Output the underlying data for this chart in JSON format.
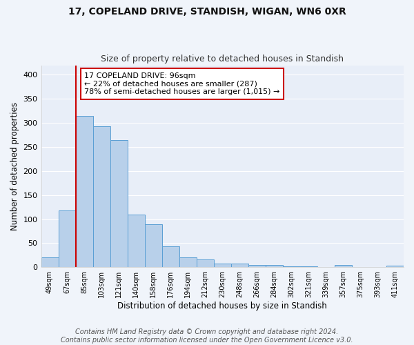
{
  "title1": "17, COPELAND DRIVE, STANDISH, WIGAN, WN6 0XR",
  "title2": "Size of property relative to detached houses in Standish",
  "xlabel": "Distribution of detached houses by size in Standish",
  "ylabel": "Number of detached properties",
  "footer": "Contains HM Land Registry data © Crown copyright and database right 2024.\nContains public sector information licensed under the Open Government Licence v3.0.",
  "bin_labels": [
    "49sqm",
    "67sqm",
    "85sqm",
    "103sqm",
    "121sqm",
    "140sqm",
    "158sqm",
    "176sqm",
    "194sqm",
    "212sqm",
    "230sqm",
    "248sqm",
    "266sqm",
    "284sqm",
    "302sqm",
    "321sqm",
    "339sqm",
    "357sqm",
    "375sqm",
    "393sqm",
    "411sqm"
  ],
  "bar_values": [
    20,
    118,
    315,
    293,
    265,
    110,
    89,
    44,
    21,
    16,
    8,
    7,
    5,
    4,
    2,
    2,
    1,
    5,
    1,
    1,
    3
  ],
  "bar_color": "#b8d0ea",
  "bar_edge_color": "#5a9fd4",
  "background_color": "#e8eef8",
  "grid_color": "#ffffff",
  "annotation_text": "17 COPELAND DRIVE: 96sqm\n← 22% of detached houses are smaller (287)\n78% of semi-detached houses are larger (1,015) →",
  "annotation_box_color": "#ffffff",
  "annotation_box_edge": "#cc0000",
  "vline_x_index": 1.5,
  "vline_color": "#cc0000",
  "ylim": [
    0,
    420
  ],
  "yticks": [
    0,
    50,
    100,
    150,
    200,
    250,
    300,
    350,
    400
  ],
  "title1_fontsize": 10,
  "title2_fontsize": 9,
  "xlabel_fontsize": 8.5,
  "ylabel_fontsize": 8.5,
  "footer_fontsize": 7,
  "annot_fontsize": 8
}
